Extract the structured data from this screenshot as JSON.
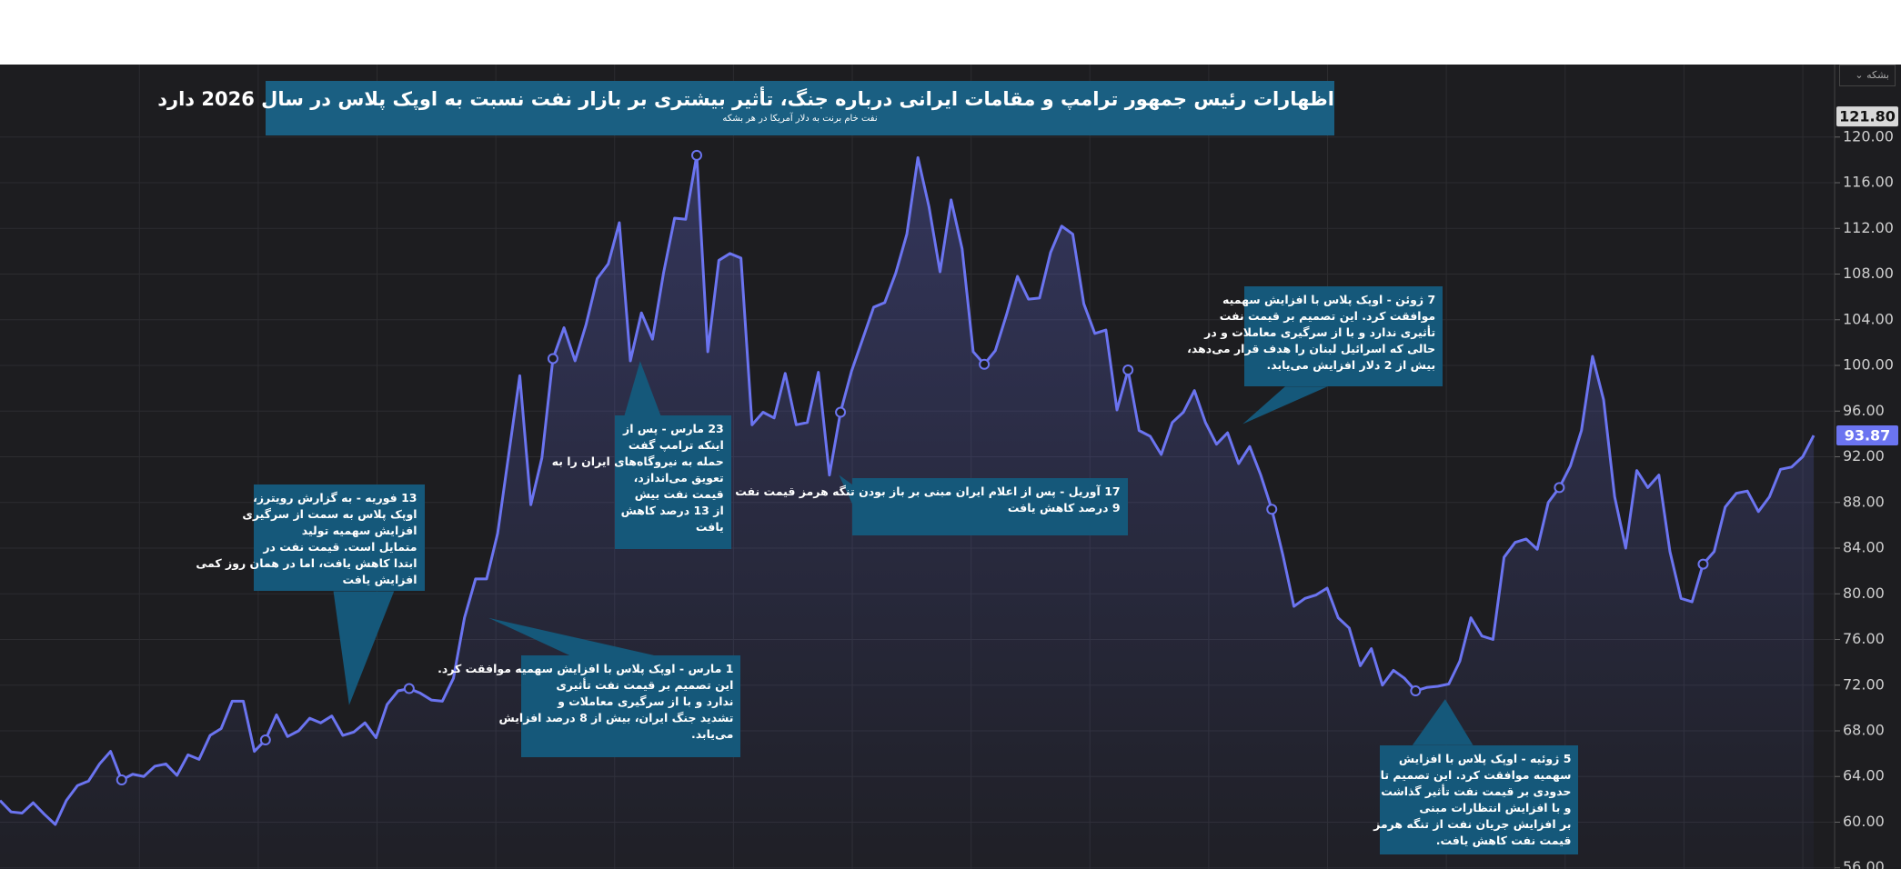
{
  "chart_data": {
    "type": "line",
    "title": "اظهارات رئیس جمهور ترامپ و مقامات ایرانی درباره جنگ، تأثیر بیشتری بر بازار نفت نسبت به اوپک پلاس در سال 2026 دارد",
    "subtitle": "نفت خام برنت به دلار آمریکا در هر بشکه",
    "unit_selector": "بشکه",
    "color": "#6b74f0",
    "values": [
      61.9,
      60.9,
      60.8,
      61.7,
      60.7,
      59.8,
      61.9,
      63.2,
      63.6,
      65.1,
      66.2,
      63.7,
      64.2,
      64.0,
      64.9,
      65.1,
      64.1,
      65.9,
      65.5,
      67.6,
      68.2,
      70.6,
      70.6,
      66.2,
      67.2,
      69.4,
      67.5,
      68.0,
      69.1,
      68.7,
      69.3,
      67.6,
      67.9,
      68.7,
      67.4,
      70.3,
      71.5,
      71.7,
      71.3,
      70.7,
      70.6,
      72.6,
      77.9,
      81.3,
      81.3,
      85.3,
      92.2,
      99.1,
      87.8,
      91.9,
      100.6,
      103.3,
      100.4,
      103.6,
      107.6,
      108.9,
      112.5,
      100.4,
      104.6,
      102.3,
      108.1,
      112.9,
      112.8,
      118.4,
      101.2,
      109.2,
      109.8,
      109.4,
      94.8,
      95.9,
      95.4,
      99.3,
      94.8,
      95.0,
      99.4,
      90.4,
      95.9,
      99.5,
      102.3,
      105.1,
      105.5,
      108.1,
      111.5,
      118.2,
      113.9,
      108.2,
      114.5,
      110.2,
      101.2,
      100.1,
      101.3,
      104.4,
      107.8,
      105.8,
      105.9,
      109.9,
      112.2,
      111.5,
      105.4,
      102.8,
      103.1,
      96.1,
      99.6,
      94.3,
      93.8,
      92.2,
      95.0,
      95.9,
      97.8,
      95.0,
      93.1,
      94.1,
      91.4,
      92.9,
      90.4,
      87.4,
      83.4,
      78.9,
      79.6,
      79.9,
      80.5,
      77.9,
      77.0,
      73.7,
      75.2,
      72.0,
      73.3,
      72.6,
      71.5,
      71.8,
      71.9,
      72.1,
      74.1,
      77.9,
      76.3,
      76.0,
      83.2,
      84.5,
      84.8,
      83.9,
      88.0,
      89.3,
      91.2,
      94.3,
      100.8,
      97.0,
      88.5,
      84.0,
      90.8,
      89.3,
      90.4,
      83.7,
      79.6,
      79.3,
      82.6,
      83.7,
      87.6,
      88.8,
      89.0,
      87.2,
      88.5,
      90.9,
      91.1,
      92.0,
      93.87
    ],
    "ylim": [
      55.9,
      126.35
    ],
    "yticks": [
      {
        "value": 56,
        "label": "56.00"
      },
      {
        "value": 60,
        "label": "60.00"
      },
      {
        "value": 64,
        "label": "64.00"
      },
      {
        "value": 68,
        "label": "68.00"
      },
      {
        "value": 72,
        "label": "72.00"
      },
      {
        "value": 76,
        "label": "76.00"
      },
      {
        "value": 80,
        "label": "80.00"
      },
      {
        "value": 84,
        "label": "84.00"
      },
      {
        "value": 88,
        "label": "88.00"
      },
      {
        "value": 92,
        "label": "92.00"
      },
      {
        "value": 96,
        "label": "96.00"
      },
      {
        "value": 100,
        "label": "100.00"
      },
      {
        "value": 104,
        "label": "104.00"
      },
      {
        "value": 108,
        "label": "108.00"
      },
      {
        "value": 112,
        "label": "112.00"
      },
      {
        "value": 116,
        "label": "116.00"
      },
      {
        "value": 120,
        "label": "120.00"
      }
    ],
    "price_labels": [
      {
        "value": 121.8,
        "label": "121.80"
      },
      {
        "value": 93.87,
        "label": "93.87"
      }
    ],
    "grid": true,
    "annotations": [
      {
        "lines": [
          "13 فوریه - به گزارش رویترز،",
          "اوپک پلاس به سمت از سرگیری",
          "افزایش سهمیه تولید",
          "متمایل است. قیمت نفت در",
          "ابتدا کاهش یافت، اما در همان روز کمی",
          "افزایش یافت"
        ]
      },
      {
        "lines": [
          "23 مارس - پس از",
          "اینکه ترامپ گفت",
          "حمله به نیروگاه‌های ایران را به",
          "تعویق می‌اندازد،",
          "قیمت نفت بیش",
          "از 13 درصد کاهش",
          "یافت"
        ]
      },
      {
        "lines": [
          "1 مارس - اوپک پلاس با افزایش سهمیه موافقت کرد.",
          "این تصمیم بر قیمت نفت تأثیری",
          "ندارد و با از سرگیری معاملات و",
          "تشدید جنگ ایران، بیش از 8 درصد افزایش",
          "می‌یابد."
        ]
      },
      {
        "lines": [
          "17 آوریل - پس از اعلام ایران مبنی بر باز بودن تنگه هرمز قیمت نفت",
          "9 درصد کاهش یافت"
        ]
      },
      {
        "lines": [
          "7 ژوئن - اوپک پلاس با افزایش سهمیه",
          "موافقت کرد. این تصمیم بر قیمت نفت",
          "تأثیری ندارد و با از سرگیری معاملات و در",
          "حالی که اسرائیل لبنان را هدف قرار می‌دهد،",
          "بیش از 2 دلار افزایش می‌یابد."
        ]
      },
      {
        "lines": [
          "5 ژوئیه - اوپک پلاس با افزایش",
          "سهمیه موافقت کرد. این تصمیم تا",
          "حدودی بر قیمت نفت تأثیر گذاشت",
          "و با افزایش انتظارات مبنی",
          "بر افزایش جریان نفت از تنگه هرمز",
          "قیمت نفت کاهش یافت."
        ]
      }
    ]
  }
}
